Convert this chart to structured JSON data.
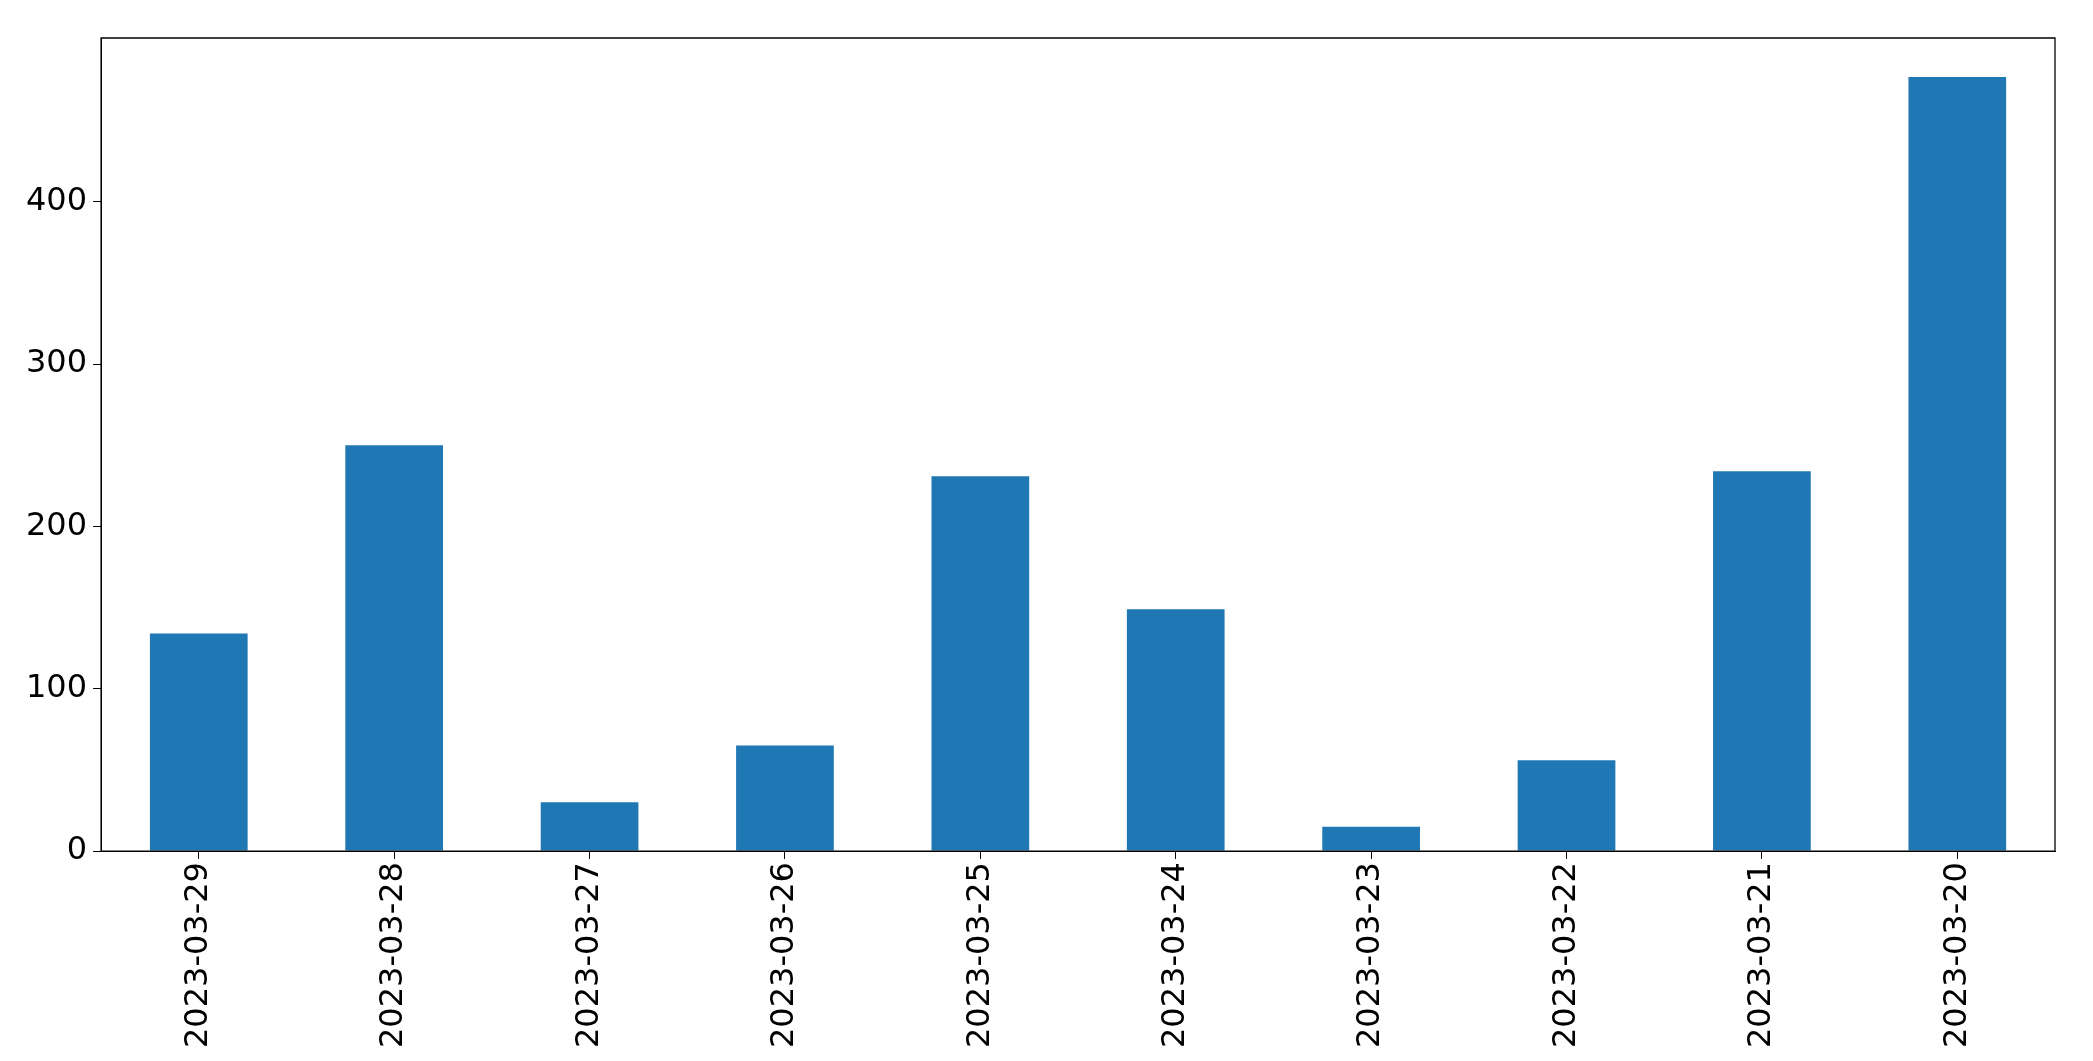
{
  "chart_data": {
    "type": "bar",
    "categories": [
      "2023-03-29",
      "2023-03-28",
      "2023-03-27",
      "2023-03-26",
      "2023-03-25",
      "2023-03-24",
      "2023-03-23",
      "2023-03-22",
      "2023-03-21",
      "2023-03-20"
    ],
    "values": [
      134,
      250,
      30,
      65,
      231,
      149,
      15,
      56,
      234,
      477
    ],
    "color": "#1f77b4",
    "ylim": [
      0,
      501
    ],
    "yticks": [
      0,
      100,
      200,
      300,
      400
    ],
    "grid": false,
    "legend": false
  }
}
